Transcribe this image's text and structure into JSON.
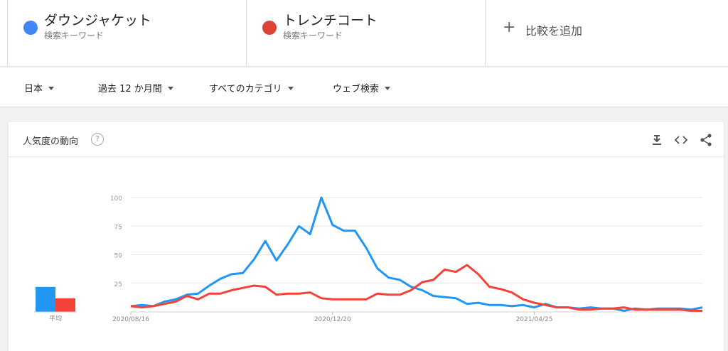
{
  "terms": [
    {
      "name": "ダウンジャケット",
      "type": "検索キーワード",
      "color": "#4285f4"
    },
    {
      "name": "トレンチコート",
      "type": "検索キーワード",
      "color": "#db4437"
    }
  ],
  "add_compare": {
    "icon": "plus-icon",
    "label": "比較を追加"
  },
  "filters": {
    "region": "日本",
    "period": "過去 12 か月間",
    "category": "すべてのカテゴリ",
    "search_type": "ウェブ検索"
  },
  "card": {
    "title": "人気度の動向",
    "help_icon": "?",
    "tools": [
      "download-icon",
      "embed-icon",
      "share-icon"
    ]
  },
  "chart_data": {
    "type": "line",
    "y_ticks": [
      "100",
      "75",
      "50",
      "25"
    ],
    "ylim": [
      0,
      100
    ],
    "x_tick_labels": [
      "2020/08/16",
      "2020/12/20",
      "2021/04/25"
    ],
    "average_label": "平均",
    "averages": [
      22,
      12
    ],
    "series": [
      {
        "name": "ダウンジャケット",
        "color": "#2196f3",
        "values": [
          5,
          6,
          5,
          9,
          11,
          15,
          16,
          23,
          29,
          33,
          34,
          46,
          62,
          45,
          59,
          75,
          68,
          100,
          76,
          71,
          71,
          56,
          38,
          30,
          28,
          22,
          19,
          14,
          13,
          12,
          7,
          8,
          6,
          6,
          5,
          6,
          4,
          7,
          4,
          4,
          3,
          4,
          3,
          3,
          1,
          3,
          2,
          3,
          3,
          3,
          2,
          4
        ]
      },
      {
        "name": "トレンチコート",
        "color": "#f44336",
        "values": [
          5,
          4,
          5,
          7,
          9,
          14,
          11,
          16,
          16,
          19,
          21,
          23,
          22,
          15,
          16,
          16,
          17,
          12,
          11,
          11,
          11,
          11,
          16,
          15,
          15,
          19,
          26,
          28,
          37,
          35,
          41,
          33,
          22,
          20,
          17,
          11,
          8,
          6,
          4,
          4,
          2,
          2,
          3,
          3,
          4,
          2,
          2,
          2,
          2,
          2,
          1,
          1
        ]
      }
    ]
  }
}
